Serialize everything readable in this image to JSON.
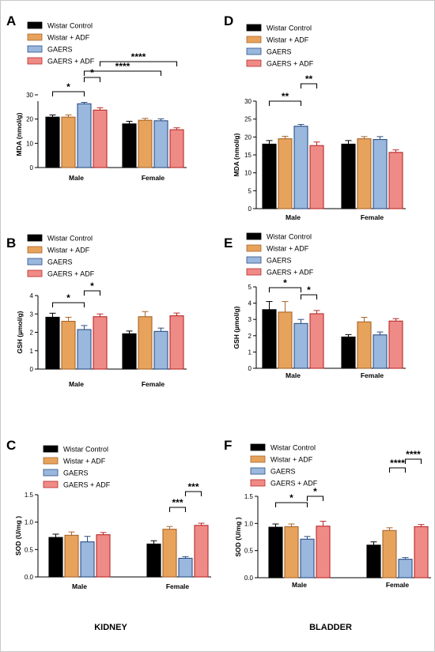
{
  "colors": {
    "wistar_control": "#000000",
    "wistar_adf": "#e7a35b",
    "gaers": "#9ab7dd",
    "gaers_adf": "#ef8b86",
    "edge_wistar_adf": "#a8652b",
    "edge_gaers": "#2c4f86",
    "edge_gaers_adf": "#b9292a"
  },
  "legend": [
    "Wistar Control",
    "Wistar + ADF",
    "GAERS",
    "GAERS + ADF"
  ],
  "footer": {
    "kidney": "KIDNEY",
    "bladder": "BLADDER"
  },
  "chart_data": [
    {
      "panel": "A",
      "type": "bar",
      "ylabel": "MDA (nmol/g)",
      "categories": [
        "Male",
        "Female"
      ],
      "ylim": [
        0,
        30
      ],
      "yticks": [
        0,
        10,
        20,
        30
      ],
      "series": [
        {
          "name": "Wistar Control",
          "values": [
            20.8,
            18.0
          ],
          "errors": [
            0.9,
            1.1
          ]
        },
        {
          "name": "Wistar + ADF",
          "values": [
            20.8,
            19.5
          ],
          "errors": [
            0.9,
            0.8
          ]
        },
        {
          "name": "GAERS",
          "values": [
            26.3,
            19.3
          ],
          "errors": [
            0.6,
            0.8
          ]
        },
        {
          "name": "GAERS + ADF",
          "values": [
            23.7,
            15.6
          ],
          "errors": [
            1.0,
            0.8
          ]
        }
      ],
      "significance": [
        {
          "from": [
            0,
            0
          ],
          "to": [
            0,
            2
          ],
          "label": "*"
        },
        {
          "from": [
            0,
            2
          ],
          "to": [
            0,
            3
          ],
          "label": "*"
        },
        {
          "from": [
            0,
            2
          ],
          "to": [
            1,
            2
          ],
          "label": "****"
        },
        {
          "from": [
            0,
            3
          ],
          "to": [
            1,
            3
          ],
          "label": "****"
        }
      ]
    },
    {
      "panel": "B",
      "type": "bar",
      "ylabel": "GSH (µmol/g)",
      "categories": [
        "Male",
        "Female"
      ],
      "ylim": [
        0,
        4
      ],
      "yticks": [
        0,
        1,
        2,
        3,
        4
      ],
      "series": [
        {
          "name": "Wistar Control",
          "values": [
            2.82,
            1.92
          ],
          "errors": [
            0.22,
            0.15
          ]
        },
        {
          "name": "Wistar + ADF",
          "values": [
            2.6,
            2.85
          ],
          "errors": [
            0.22,
            0.28
          ]
        },
        {
          "name": "GAERS",
          "values": [
            2.15,
            2.05
          ],
          "errors": [
            0.22,
            0.18
          ]
        },
        {
          "name": "GAERS + ADF",
          "values": [
            2.85,
            2.9
          ],
          "errors": [
            0.15,
            0.15
          ]
        }
      ],
      "significance": [
        {
          "from": [
            0,
            0
          ],
          "to": [
            0,
            2
          ],
          "label": "*"
        },
        {
          "from": [
            0,
            2
          ],
          "to": [
            0,
            3
          ],
          "label": "*"
        }
      ]
    },
    {
      "panel": "C",
      "type": "bar",
      "ylabel": "SOD (U/mg )",
      "categories": [
        "Male",
        "Female"
      ],
      "ylim": [
        0,
        1.5
      ],
      "yticks": [
        "0.0",
        "0.5",
        "1.0",
        "1.5"
      ],
      "series": [
        {
          "name": "Wistar Control",
          "values": [
            0.72,
            0.6
          ],
          "errors": [
            0.06,
            0.06
          ]
        },
        {
          "name": "Wistar + ADF",
          "values": [
            0.76,
            0.87
          ],
          "errors": [
            0.06,
            0.05
          ]
        },
        {
          "name": "GAERS",
          "values": [
            0.64,
            0.34
          ],
          "errors": [
            0.1,
            0.03
          ]
        },
        {
          "name": "GAERS + ADF",
          "values": [
            0.77,
            0.94
          ],
          "errors": [
            0.04,
            0.04
          ]
        }
      ],
      "significance": [
        {
          "from": [
            1,
            1
          ],
          "to": [
            1,
            2
          ],
          "label": "***"
        },
        {
          "from": [
            1,
            2
          ],
          "to": [
            1,
            3
          ],
          "label": "***"
        }
      ]
    },
    {
      "panel": "D",
      "type": "bar",
      "ylabel": "MDA (nmol/g)",
      "categories": [
        "Male",
        "Female"
      ],
      "ylim": [
        0,
        30
      ],
      "yticks": [
        0,
        5,
        10,
        15,
        20,
        25,
        30
      ],
      "series": [
        {
          "name": "Wistar Control",
          "values": [
            18.0,
            18.0
          ],
          "errors": [
            1.0,
            1.0
          ]
        },
        {
          "name": "Wistar + ADF",
          "values": [
            19.5,
            19.5
          ],
          "errors": [
            0.7,
            0.6
          ]
        },
        {
          "name": "GAERS",
          "values": [
            23.0,
            19.3
          ],
          "errors": [
            0.5,
            0.8
          ]
        },
        {
          "name": "GAERS + ADF",
          "values": [
            17.6,
            15.7
          ],
          "errors": [
            1.0,
            0.7
          ]
        }
      ],
      "significance": [
        {
          "from": [
            0,
            0
          ],
          "to": [
            0,
            2
          ],
          "label": "**"
        },
        {
          "from": [
            0,
            2
          ],
          "to": [
            0,
            3
          ],
          "label": "**"
        }
      ]
    },
    {
      "panel": "E",
      "type": "bar",
      "ylabel": "GSH (µmol/g)",
      "categories": [
        "Male",
        "Female"
      ],
      "ylim": [
        0,
        5
      ],
      "yticks": [
        0,
        1,
        2,
        3,
        4,
        5
      ],
      "series": [
        {
          "name": "Wistar Control",
          "values": [
            3.6,
            1.92
          ],
          "errors": [
            0.5,
            0.15
          ]
        },
        {
          "name": "Wistar + ADF",
          "values": [
            3.45,
            2.85
          ],
          "errors": [
            0.65,
            0.28
          ]
        },
        {
          "name": "GAERS",
          "values": [
            2.75,
            2.05
          ],
          "errors": [
            0.25,
            0.18
          ]
        },
        {
          "name": "GAERS + ADF",
          "values": [
            3.35,
            2.9
          ],
          "errors": [
            0.2,
            0.15
          ]
        }
      ],
      "significance": [
        {
          "from": [
            0,
            0
          ],
          "to": [
            0,
            2
          ],
          "label": "*"
        },
        {
          "from": [
            0,
            2
          ],
          "to": [
            0,
            3
          ],
          "label": "*"
        }
      ]
    },
    {
      "panel": "F",
      "type": "bar",
      "ylabel": "SOD (U/mg )",
      "categories": [
        "Male",
        "Female"
      ],
      "ylim": [
        0,
        1.5
      ],
      "yticks": [
        "0.0",
        "0.5",
        "1.0",
        "1.5"
      ],
      "series": [
        {
          "name": "Wistar Control",
          "values": [
            0.93,
            0.6
          ],
          "errors": [
            0.06,
            0.06
          ]
        },
        {
          "name": "Wistar + ADF",
          "values": [
            0.94,
            0.87
          ],
          "errors": [
            0.05,
            0.05
          ]
        },
        {
          "name": "GAERS",
          "values": [
            0.71,
            0.34
          ],
          "errors": [
            0.05,
            0.03
          ]
        },
        {
          "name": "GAERS + ADF",
          "values": [
            0.95,
            0.94
          ],
          "errors": [
            0.09,
            0.04
          ]
        }
      ],
      "significance": [
        {
          "from": [
            0,
            0
          ],
          "to": [
            0,
            2
          ],
          "label": "*"
        },
        {
          "from": [
            0,
            2
          ],
          "to": [
            0,
            3
          ],
          "label": "*"
        },
        {
          "from": [
            1,
            1
          ],
          "to": [
            1,
            2
          ],
          "label": "****"
        },
        {
          "from": [
            1,
            2
          ],
          "to": [
            1,
            3
          ],
          "label": "****"
        }
      ]
    }
  ]
}
